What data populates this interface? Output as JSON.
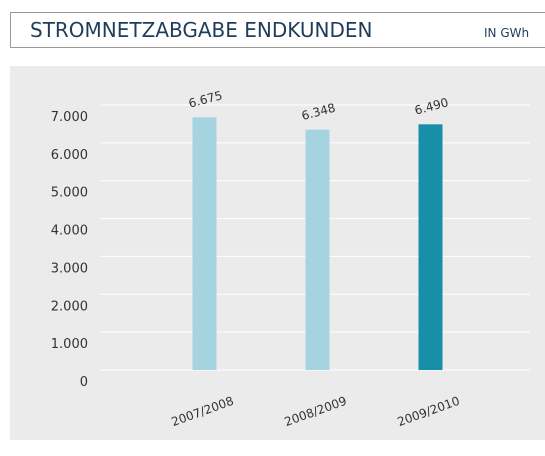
{
  "chart_data": {
    "type": "bar",
    "title": "STROMNETZABGABE ENDKUNDEN",
    "unit": "IN GWh",
    "categories": [
      "2007/2008",
      "2008/2009",
      "2009/2010"
    ],
    "values": [
      6675,
      6348,
      6490
    ],
    "value_labels": [
      "6.675",
      "6.348",
      "6.490"
    ],
    "colors": [
      "#a6d3e0",
      "#a6d3e0",
      "#178fa6"
    ],
    "ylim": [
      0,
      7000
    ],
    "yticks": [
      0,
      {
        "value": 1000,
        "label": "1.000"
      },
      {
        "value": 2000,
        "label": "2.000"
      },
      {
        "value": 3000,
        "label": "3.000"
      },
      {
        "value": 4000,
        "label": "4.000"
      },
      {
        "value": 5000,
        "label": "5.000"
      },
      {
        "value": 6000,
        "label": "6.000"
      },
      {
        "value": 7000,
        "label": "7.000"
      }
    ],
    "grid": true
  }
}
